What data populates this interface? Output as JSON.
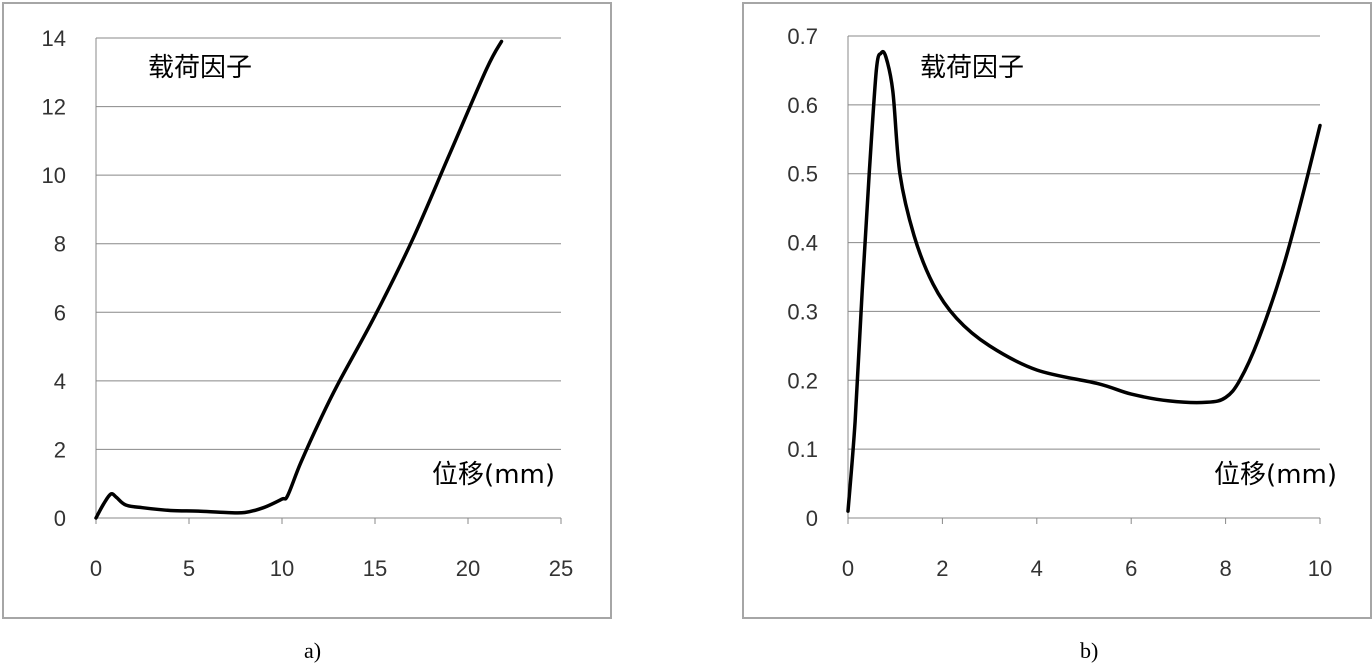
{
  "chart_data": [
    {
      "type": "line",
      "title": "",
      "ylabel": "载荷因子",
      "xlabel": "位移(mm)",
      "caption": "a)",
      "xlim": [
        0,
        25
      ],
      "ylim": [
        0,
        14
      ],
      "x_ticks": [
        "0",
        "5",
        "10",
        "15",
        "20",
        "25"
      ],
      "y_ticks": [
        "0",
        "2",
        "4",
        "6",
        "8",
        "10",
        "12",
        "14"
      ],
      "grid": "horizontal",
      "series": [
        {
          "x": [
            0,
            0.4,
            0.8,
            1.1,
            1.6,
            2.5,
            4,
            5.5,
            7,
            8,
            9,
            10,
            10.3,
            11,
            12,
            13,
            15,
            17,
            19,
            21,
            21.8
          ],
          "y": [
            0,
            0.4,
            0.7,
            0.6,
            0.38,
            0.3,
            0.22,
            0.2,
            0.16,
            0.16,
            0.3,
            0.55,
            0.65,
            1.6,
            2.8,
            3.9,
            5.9,
            8.1,
            10.6,
            13.1,
            13.9
          ]
        }
      ]
    },
    {
      "type": "line",
      "title": "",
      "ylabel": "载荷因子",
      "xlabel": "位移(mm)",
      "caption": "b)",
      "xlim": [
        0,
        10
      ],
      "ylim": [
        0,
        0.7
      ],
      "x_ticks": [
        "0",
        "2",
        "4",
        "6",
        "8",
        "10"
      ],
      "y_ticks": [
        "0",
        "0.1",
        "0.2",
        "0.3",
        "0.4",
        "0.5",
        "0.6",
        "0.7"
      ],
      "grid": "horizontal",
      "series": [
        {
          "x": [
            0,
            0.15,
            0.3,
            0.45,
            0.6,
            0.7,
            0.8,
            0.95,
            1.1,
            1.4,
            1.8,
            2.3,
            3,
            4,
            5.3,
            6,
            6.8,
            7.6,
            8,
            8.3,
            8.7,
            9.2,
            9.6,
            10
          ],
          "y": [
            0.01,
            0.14,
            0.33,
            0.5,
            0.65,
            0.675,
            0.67,
            0.62,
            0.5,
            0.41,
            0.34,
            0.29,
            0.25,
            0.215,
            0.195,
            0.18,
            0.17,
            0.168,
            0.175,
            0.2,
            0.26,
            0.36,
            0.46,
            0.57
          ]
        }
      ]
    }
  ]
}
